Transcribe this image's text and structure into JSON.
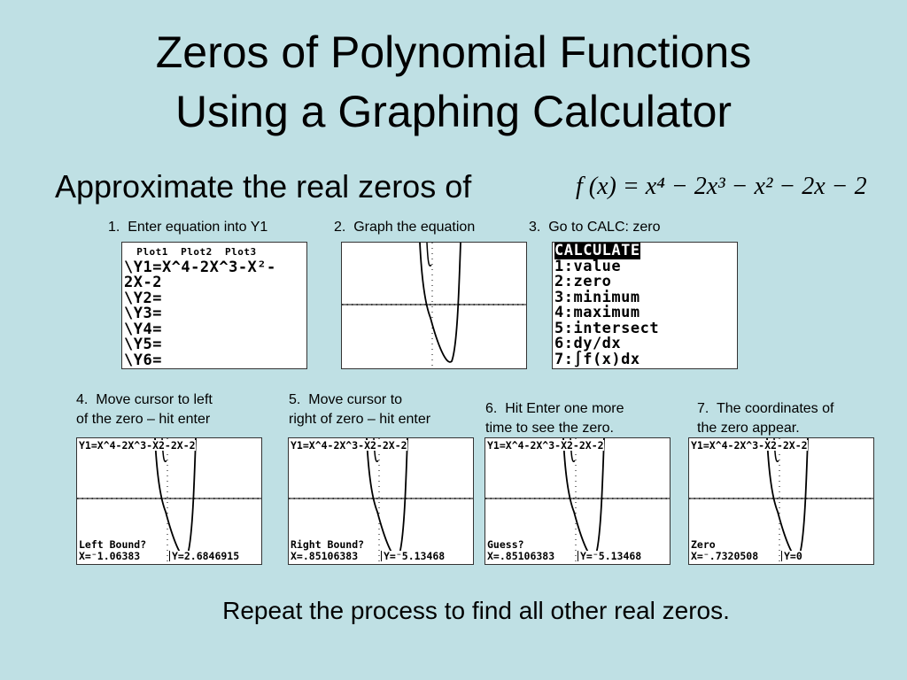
{
  "title": [
    "Zeros of Polynomial Functions",
    "Using a Graphing Calculator"
  ],
  "subtitle": "Approximate the real zeros of",
  "formula": "f (x) = x⁴ − 2x³ − x² − 2x − 2",
  "steps": [
    {
      "caption": [
        "1.  Enter equation into Y1"
      ],
      "lines": [
        "  Plot1  Plot2  Plot3",
        "\\Y1=X^4-2X^3-X²-",
        "2X-2",
        "\\Y2=",
        "\\Y3=",
        "\\Y4=",
        "\\Y5=",
        "\\Y6="
      ]
    },
    {
      "caption": [
        "2.  Graph the equation"
      ]
    },
    {
      "caption": [
        "3.  Go to CALC: zero"
      ],
      "lines": [
        "CALCULATE",
        "1:value",
        "2:zero",
        "3:minimum",
        "4:maximum",
        "5:intersect",
        "6:dy/dx",
        "7:∫f(x)dx"
      ]
    },
    {
      "caption": [
        "4.  Move cursor to left",
        "of the zero – hit enter"
      ],
      "equation": "Y1=X^4-2X^3-X2-2X-2",
      "prompt": "Left Bound?",
      "x": "X=⁻1.06383",
      "y": "Y=2.6846915"
    },
    {
      "caption": [
        "5.  Move cursor to",
        "right of zero – hit enter"
      ],
      "equation": "Y1=X^4-2X^3-X2-2X-2",
      "prompt": "Right Bound?",
      "x": "X=.85106383",
      "y": "Y=⁻5.13468"
    },
    {
      "caption": [
        "6.  Hit Enter one more",
        "time to see the zero."
      ],
      "equation": "Y1=X^4-2X^3-X2-2X-2",
      "prompt": "Guess?",
      "x": "X=.85106383",
      "y": "Y=⁻5.13468"
    },
    {
      "caption": [
        "7.  The coordinates of",
        "the zero appear."
      ],
      "equation": "Y1=X^4-2X^3-X2-2X-2",
      "prompt": "Zero",
      "x": "X=⁻.7320508",
      "y": "Y=0"
    }
  ],
  "footer": "Repeat the process to find all other real zeros."
}
